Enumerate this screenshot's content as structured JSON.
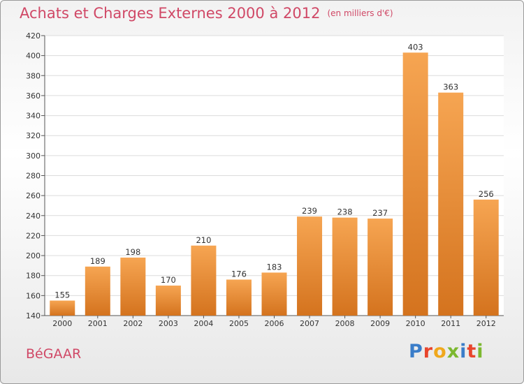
{
  "title": "Achats et Charges Externes 2000 à 2012",
  "unit_note": "(en milliers d'€)",
  "commune": "BéGAAR",
  "logo": "Proxiti",
  "colors": {
    "title": "#d04866",
    "bar_top": "#f6a552",
    "bar_bottom": "#d4731e"
  },
  "chart_data": {
    "type": "bar",
    "title": "Achats et Charges Externes 2000 à 2012",
    "categories": [
      "2000",
      "2001",
      "2002",
      "2003",
      "2004",
      "2005",
      "2006",
      "2007",
      "2008",
      "2009",
      "2010",
      "2011",
      "2012"
    ],
    "values": [
      155,
      189,
      198,
      170,
      210,
      176,
      183,
      239,
      238,
      237,
      403,
      363,
      256
    ],
    "ylim": [
      140,
      420
    ],
    "yticks": [
      140,
      160,
      180,
      200,
      220,
      240,
      260,
      280,
      300,
      320,
      340,
      360,
      380,
      400,
      420
    ],
    "grid": true,
    "legend": "none"
  }
}
